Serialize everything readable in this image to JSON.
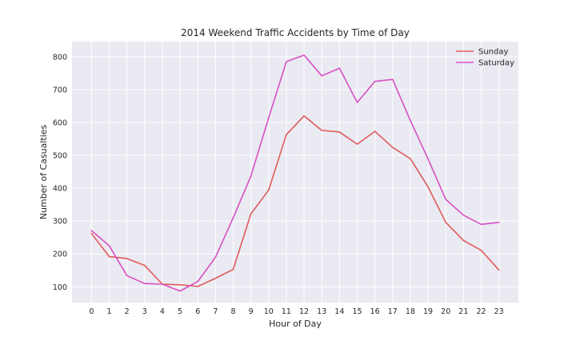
{
  "chart_data": {
    "type": "line",
    "title": "2014 Weekend Traffic Accidents by Time of Day",
    "xlabel": "Hour of Day",
    "ylabel": "Number of Casualties",
    "x": [
      0,
      1,
      2,
      3,
      4,
      5,
      6,
      7,
      8,
      9,
      10,
      11,
      12,
      13,
      14,
      15,
      16,
      17,
      18,
      19,
      20,
      21,
      22,
      23
    ],
    "xlim": [
      -1.1,
      24.1
    ],
    "ylim": [
      52,
      846
    ],
    "yticks": [
      100,
      200,
      300,
      400,
      500,
      600,
      700,
      800
    ],
    "grid": true,
    "legend": "top-right",
    "background_color": "#eaeaf2",
    "series": [
      {
        "name": "Sunday",
        "color": "#e05a5a",
        "values": [
          262,
          192,
          186,
          165,
          108,
          106,
          101,
          126,
          153,
          322,
          394,
          563,
          620,
          576,
          571,
          534,
          573,
          524,
          490,
          404,
          296,
          241,
          211,
          151
        ]
      },
      {
        "name": "Saturday",
        "color": "#d94fc4",
        "values": [
          271,
          225,
          134,
          110,
          108,
          87,
          116,
          190,
          310,
          437,
          614,
          785,
          805,
          742,
          765,
          661,
          725,
          731,
          606,
          489,
          366,
          318,
          290,
          296
        ]
      }
    ]
  }
}
